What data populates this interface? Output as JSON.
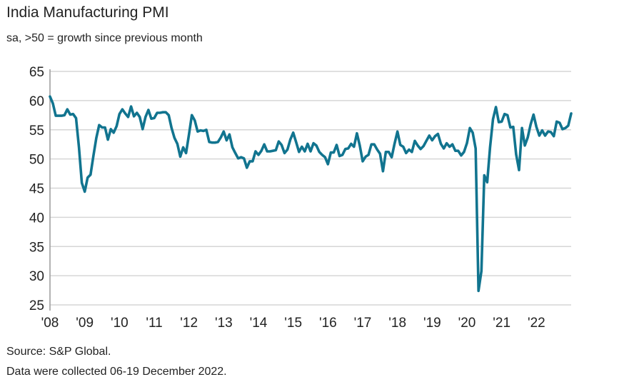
{
  "chart_data": {
    "type": "line",
    "title": "India Manufacturing PMI",
    "subtitle": "sa, >50 = growth since previous month",
    "xlabel": "",
    "ylabel": "",
    "ylim": [
      25,
      65
    ],
    "yticks": [
      "65",
      "60",
      "55",
      "50",
      "45",
      "40",
      "35",
      "30",
      "25"
    ],
    "xticks": [
      "'08",
      "'09",
      "'10",
      "'11",
      "'12",
      "'13",
      "'14",
      "'15",
      "'16",
      "'17",
      "'18",
      "'19",
      "'20",
      "'21",
      "'22"
    ],
    "x_start": "2008-01",
    "x_end": "2022-12",
    "frequency": "monthly",
    "grid": true,
    "line_color": "#11748f",
    "series": [
      {
        "values": [
          60.7,
          59.5,
          57.4,
          57.4,
          57.4,
          57.5,
          58.5,
          57.6,
          57.7,
          57.0,
          52.0,
          45.9,
          44.4,
          46.8,
          47.3,
          50.5,
          53.6,
          55.8,
          55.4,
          55.4,
          53.3,
          55.1,
          54.5,
          55.6,
          57.7,
          58.5,
          57.8,
          57.2,
          59.0,
          57.3,
          57.9,
          57.2,
          55.1,
          57.2,
          58.4,
          56.9,
          57.0,
          57.9,
          57.9,
          58.0,
          58.0,
          57.5,
          55.3,
          53.6,
          52.6,
          50.4,
          52.0,
          51.0,
          54.2,
          57.5,
          56.6,
          54.7,
          54.9,
          54.8,
          55.0,
          52.9,
          52.8,
          52.8,
          52.9,
          53.7,
          54.7,
          53.2,
          54.2,
          52.0,
          51.0,
          50.1,
          50.3,
          50.1,
          48.5,
          49.6,
          49.6,
          51.3,
          50.7,
          51.4,
          52.5,
          51.3,
          51.3,
          51.4,
          51.5,
          53.0,
          52.4,
          51.0,
          51.6,
          53.3,
          54.5,
          52.9,
          51.2,
          52.1,
          51.3,
          52.6,
          51.3,
          52.7,
          52.3,
          51.2,
          50.7,
          50.3,
          49.1,
          51.1,
          51.1,
          52.4,
          50.5,
          50.7,
          51.7,
          51.8,
          52.6,
          52.1,
          54.4,
          52.3,
          49.6,
          50.4,
          50.7,
          52.5,
          52.5,
          51.6,
          50.9,
          47.9,
          51.2,
          51.2,
          50.3,
          52.6,
          54.7,
          52.4,
          52.1,
          51.0,
          51.6,
          51.2,
          53.1,
          52.3,
          51.7,
          52.2,
          53.1,
          54.0,
          53.2,
          53.9,
          54.3,
          52.6,
          51.8,
          52.7,
          52.1,
          52.5,
          51.4,
          51.4,
          50.6,
          51.2,
          52.7,
          55.3,
          54.5,
          51.8,
          27.4,
          30.8,
          47.2,
          46.0,
          52.0,
          56.8,
          58.9,
          56.3,
          56.4,
          57.7,
          57.5,
          55.4,
          55.5,
          50.8,
          48.1,
          55.3,
          52.3,
          53.7,
          55.9,
          57.6,
          55.5,
          54.0,
          54.9,
          54.0,
          54.7,
          54.6,
          53.9,
          56.4,
          56.2,
          55.1,
          55.3,
          55.7,
          57.8
        ]
      }
    ]
  },
  "footer": {
    "source": "Source: S&P Global.",
    "note": "Data were collected 06-19 December 2022."
  }
}
